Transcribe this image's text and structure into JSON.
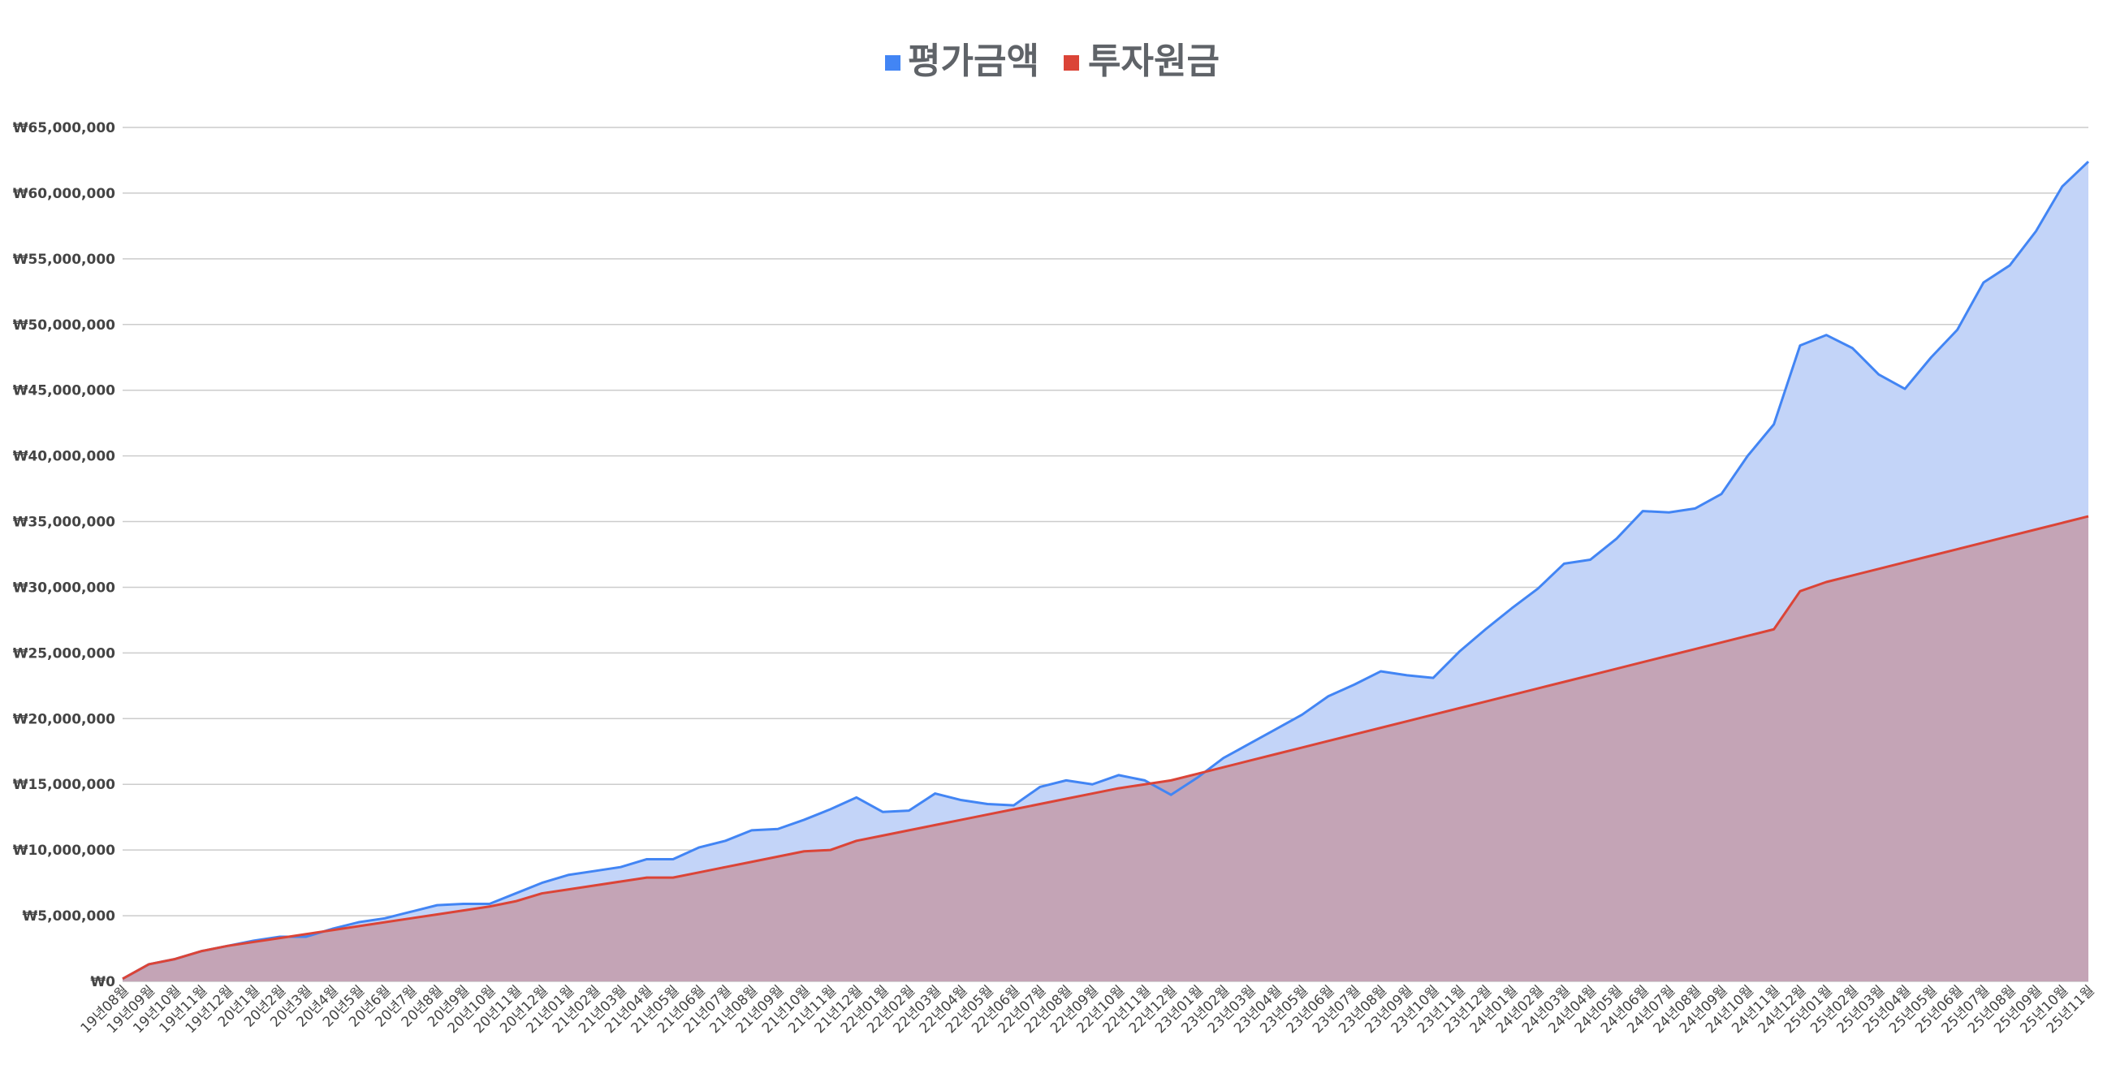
{
  "chart_data": {
    "type": "area",
    "title": "",
    "xlabel": "",
    "ylabel": "",
    "ylim": [
      0,
      65000000
    ],
    "yticks": [
      {
        "value": 0,
        "label": "₩0"
      },
      {
        "value": 5000000,
        "label": "₩5,000,000"
      },
      {
        "value": 10000000,
        "label": "₩10,000,000"
      },
      {
        "value": 15000000,
        "label": "₩15,000,000"
      },
      {
        "value": 20000000,
        "label": "₩20,000,000"
      },
      {
        "value": 25000000,
        "label": "₩25,000,000"
      },
      {
        "value": 30000000,
        "label": "₩30,000,000"
      },
      {
        "value": 35000000,
        "label": "₩35,000,000"
      },
      {
        "value": 40000000,
        "label": "₩40,000,000"
      },
      {
        "value": 45000000,
        "label": "₩45,000,000"
      },
      {
        "value": 50000000,
        "label": "₩50,000,000"
      },
      {
        "value": 55000000,
        "label": "₩55,000,000"
      },
      {
        "value": 60000000,
        "label": "₩60,000,000"
      },
      {
        "value": 65000000,
        "label": "₩65,000,000"
      }
    ],
    "grid": true,
    "legend_position": "top-center",
    "categories": [
      "19년08월",
      "19년09월",
      "19년10월",
      "19년11월",
      "19년12월",
      "20년1월",
      "20년2월",
      "20년3월",
      "20년4월",
      "20년5월",
      "20년6월",
      "20년7월",
      "20년8월",
      "20년9월",
      "20년10월",
      "20년11월",
      "20년12월",
      "21년01월",
      "21년02월",
      "21년03월",
      "21년04월",
      "21년05월",
      "21년06월",
      "21년07월",
      "21년08월",
      "21년09월",
      "21년10월",
      "21년11월",
      "21년12월",
      "22년01월",
      "22년02월",
      "22년03월",
      "22년04월",
      "22년05월",
      "22년06월",
      "22년07월",
      "22년08월",
      "22년09월",
      "22년10월",
      "22년11월",
      "22년12월",
      "23년01월",
      "23년02월",
      "23년03월",
      "23년04월",
      "23년05월",
      "23년06월",
      "23년07월",
      "23년08월",
      "23년09월",
      "23년10월",
      "23년11월",
      "23년12월",
      "24년01월",
      "24년02월",
      "24년03월",
      "24년04월",
      "24년05월",
      "24년06월",
      "24년07월",
      "24년08월",
      "24년09월",
      "24년10월",
      "24년11월",
      "24년12월",
      "25년01월",
      "25년02월",
      "25년03월",
      "25년04월",
      "25년05월",
      "25년06월",
      "25년07월",
      "25년08월",
      "25년09월",
      "25년10월",
      "25년11월"
    ],
    "series": [
      {
        "name": "평가금액",
        "color": "#4285f4",
        "fill": "#c3d4f8",
        "values": [
          200000,
          1300000,
          1700000,
          2300000,
          2700000,
          3100000,
          3400000,
          3400000,
          4000000,
          4500000,
          4800000,
          5300000,
          5800000,
          5900000,
          5900000,
          6700000,
          7500000,
          8100000,
          8400000,
          8700000,
          9300000,
          9300000,
          10200000,
          10700000,
          11500000,
          11600000,
          12300000,
          13100000,
          14000000,
          12900000,
          13000000,
          14300000,
          13800000,
          13500000,
          13400000,
          14800000,
          15300000,
          15000000,
          15700000,
          15300000,
          14200000,
          15500000,
          17000000,
          18100000,
          19200000,
          20300000,
          21700000,
          22600000,
          23600000,
          23300000,
          23100000,
          25100000,
          26800000,
          28400000,
          29900000,
          31800000,
          32100000,
          33700000,
          35800000,
          35700000,
          36000000,
          37100000,
          40000000,
          42400000,
          48400000,
          49200000,
          48200000,
          46200000,
          45100000,
          47500000,
          49600000,
          53200000,
          54500000,
          57100000,
          60500000,
          62400000
        ]
      },
      {
        "name": "투자원금",
        "color": "#db4437",
        "fill": "#c4a4b6",
        "values": [
          200000,
          1300000,
          1700000,
          2300000,
          2700000,
          3000000,
          3300000,
          3600000,
          3900000,
          4200000,
          4500000,
          4800000,
          5100000,
          5400000,
          5700000,
          6100000,
          6700000,
          7000000,
          7300000,
          7600000,
          7900000,
          7900000,
          8300000,
          8700000,
          9100000,
          9500000,
          9900000,
          10000000,
          10700000,
          11100000,
          11500000,
          11900000,
          12300000,
          12700000,
          13100000,
          13500000,
          13900000,
          14300000,
          14700000,
          15000000,
          15300000,
          15800000,
          16300000,
          16800000,
          17300000,
          17800000,
          18300000,
          18800000,
          19300000,
          19800000,
          20300000,
          20800000,
          21300000,
          21800000,
          22300000,
          22800000,
          23300000,
          23800000,
          24300000,
          24800000,
          25300000,
          25800000,
          26300000,
          26800000,
          29700000,
          30400000,
          30900000,
          31400000,
          31900000,
          32400000,
          32900000,
          33400000,
          33900000,
          34400000,
          34900000,
          35400000
        ]
      }
    ]
  }
}
